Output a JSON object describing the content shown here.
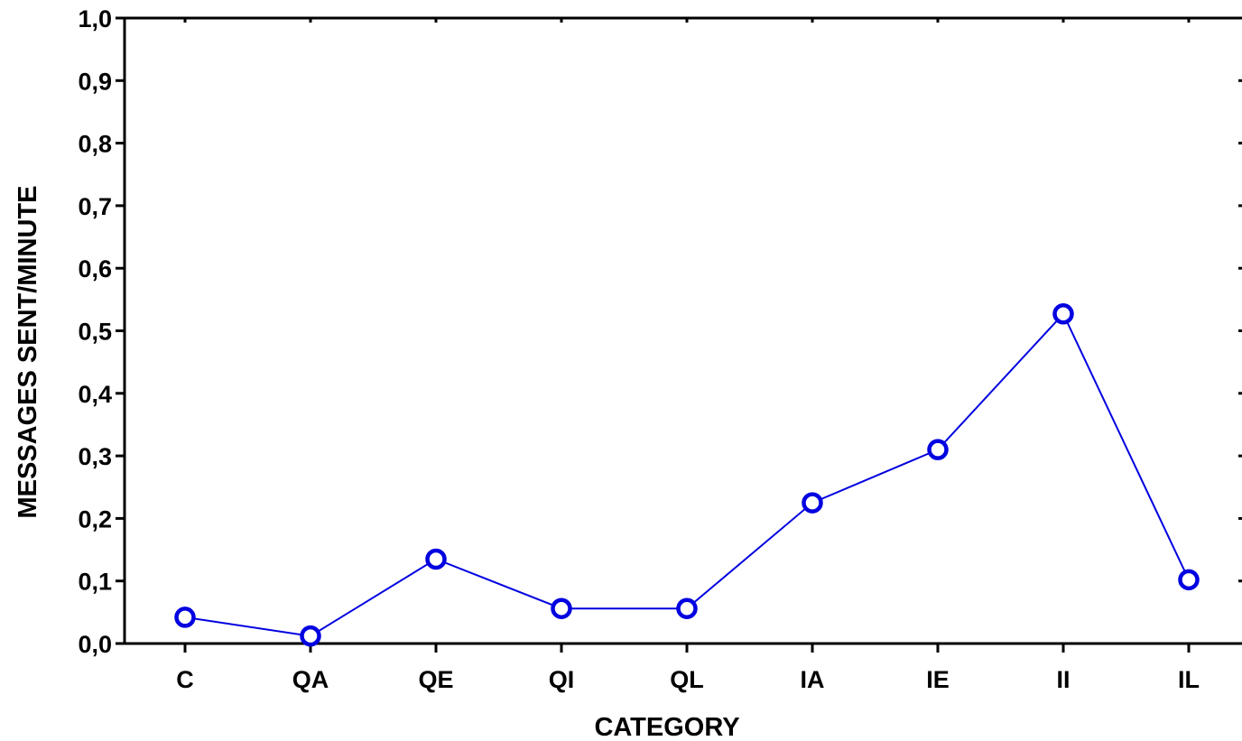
{
  "chart_data": {
    "type": "line",
    "title": "",
    "xlabel": "CATEGORY",
    "ylabel": "MESSAGES SENT/MINUTE",
    "categories": [
      "C",
      "QA",
      "QE",
      "QI",
      "QL",
      "IA",
      "IE",
      "II",
      "IL"
    ],
    "series": [
      {
        "values": [
          0.042,
          0.012,
          0.135,
          0.056,
          0.056,
          0.225,
          0.31,
          0.527,
          0.102
        ]
      }
    ],
    "ylim": [
      0,
      1
    ],
    "yticks": [
      "0,0",
      "0,1",
      "0,2",
      "0,3",
      "0,4",
      "0,5",
      "0,6",
      "0,7",
      "0,8",
      "0,9",
      "1,0"
    ],
    "grid": false,
    "legend": "none",
    "colors": {
      "series": "#0000e0",
      "axes": "#000000"
    },
    "marker": "open-circle"
  }
}
